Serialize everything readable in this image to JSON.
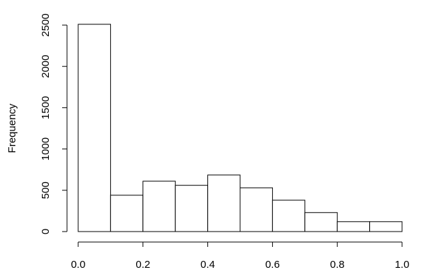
{
  "chart_data": {
    "type": "histogram",
    "y_label": "Frequency",
    "bins": [
      0,
      0.1,
      0.2,
      0.3,
      0.4,
      0.5,
      0.6,
      0.7,
      0.8,
      0.9,
      1.0
    ],
    "values": [
      2510,
      440,
      610,
      560,
      685,
      530,
      380,
      230,
      120,
      120
    ],
    "color": "#ffffff",
    "edge_color": "#000000",
    "xlim": [
      0,
      1
    ],
    "ylim": [
      0,
      2500
    ],
    "xticks": [
      {
        "value": 0,
        "label": "0.0"
      },
      0.2,
      0.4,
      0.6,
      0.8,
      {
        "value": 1,
        "label": "1.0"
      }
    ],
    "yticks": [
      0,
      500,
      1000,
      1500,
      2000,
      2500
    ]
  }
}
